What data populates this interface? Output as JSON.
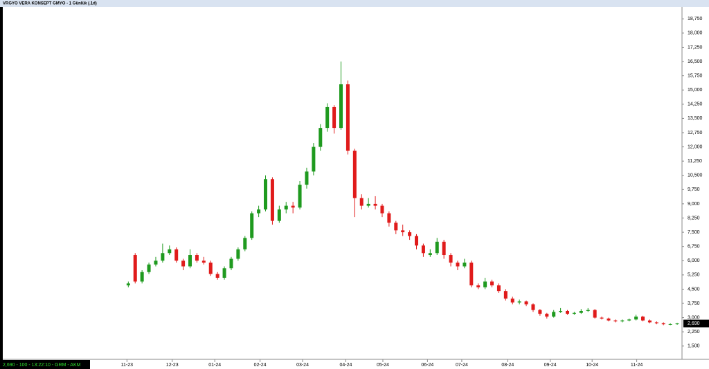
{
  "chart_data": {
    "type": "candlestick",
    "title": "VRGYO VERA KONSEPT GMYO - 1 Günlük (.1d)",
    "status": "2,690 - 100 - 13:22:10 - GRM - AKM",
    "last_price": {
      "value": 2690,
      "label": "2,690"
    },
    "up_color": "#1f9a1f",
    "down_color": "#e01b1b",
    "xlim": [
      -18.3,
      80.7
    ],
    "xticks": [
      {
        "value": -0.2,
        "label": "11-23"
      },
      {
        "value": 6.4,
        "label": "12-23"
      },
      {
        "value": 12.6,
        "label": "01-24"
      },
      {
        "value": 19.2,
        "label": "02-24"
      },
      {
        "value": 25.4,
        "label": "03-24"
      },
      {
        "value": 31.7,
        "label": "04-24"
      },
      {
        "value": 37.1,
        "label": "05-24"
      },
      {
        "value": 43.6,
        "label": "06-24"
      },
      {
        "value": 48.6,
        "label": "07-24"
      },
      {
        "value": 55.3,
        "label": "08-24"
      },
      {
        "value": 61.5,
        "label": "09-24"
      },
      {
        "value": 67.6,
        "label": "10-24"
      },
      {
        "value": 74.1,
        "label": "11-24"
      }
    ],
    "ylim": [
      800,
      19380
    ],
    "yticks": [
      {
        "value": 1500,
        "label": "1,500"
      },
      {
        "value": 2250,
        "label": "2,250"
      },
      {
        "value": 3000,
        "label": "3,000"
      },
      {
        "value": 3750,
        "label": "3,750"
      },
      {
        "value": 4500,
        "label": "4,500"
      },
      {
        "value": 5250,
        "label": "5,250"
      },
      {
        "value": 6000,
        "label": "6,000"
      },
      {
        "value": 6750,
        "label": "6,750"
      },
      {
        "value": 7500,
        "label": "7,500"
      },
      {
        "value": 8250,
        "label": "8,250"
      },
      {
        "value": 9000,
        "label": "9,000"
      },
      {
        "value": 9750,
        "label": "9,750"
      },
      {
        "value": 10500,
        "label": "10,500"
      },
      {
        "value": 11250,
        "label": "11,250"
      },
      {
        "value": 12000,
        "label": "12,000"
      },
      {
        "value": 12750,
        "label": "12,750"
      },
      {
        "value": 13500,
        "label": "13,500"
      },
      {
        "value": 14250,
        "label": "14,250"
      },
      {
        "value": 15000,
        "label": "15,000"
      },
      {
        "value": 15750,
        "label": "15,750"
      },
      {
        "value": 16500,
        "label": "16,500"
      },
      {
        "value": 17250,
        "label": "17,250"
      },
      {
        "value": 18000,
        "label": "18,000"
      },
      {
        "value": 18750,
        "label": "18,750"
      }
    ],
    "open": [
      4700,
      6300,
      4900,
      5400,
      5800,
      6000,
      6400,
      6600,
      6000,
      5700,
      6300,
      6000,
      5900,
      5300,
      5100,
      5600,
      6100,
      6600,
      7200,
      8500,
      8700,
      10300,
      8100,
      8700,
      8900,
      8800,
      10000,
      10700,
      12000,
      13000,
      14100,
      13000,
      15300,
      11800,
      9300,
      8900,
      9000,
      8900,
      8500,
      8000,
      7600,
      7500,
      7300,
      6800,
      6300,
      6400,
      7000,
      6300,
      5900,
      5700,
      5900,
      4700,
      4600,
      4900,
      4700,
      4400,
      4000,
      3800,
      3850,
      3700,
      3400,
      3200,
      3050,
      3300,
      3350,
      3200,
      3250,
      3350,
      3400,
      3000,
      2950,
      2850,
      2800,
      2850,
      2900,
      3050,
      2850,
      2750,
      2700,
      2650,
      2660
    ],
    "high": [
      4900,
      6400,
      5500,
      5900,
      6200,
      6900,
      6800,
      6700,
      6100,
      6600,
      6400,
      6200,
      6000,
      5400,
      5700,
      6200,
      6700,
      7300,
      8600,
      8900,
      10500,
      10400,
      8900,
      9100,
      9100,
      10200,
      10900,
      12200,
      13200,
      14300,
      14200,
      16500,
      15500,
      11900,
      9500,
      9300,
      9400,
      9000,
      8600,
      8100,
      7900,
      7600,
      7400,
      6900,
      6600,
      7200,
      7100,
      6400,
      6000,
      6100,
      6000,
      4800,
      5100,
      5000,
      4800,
      4500,
      4100,
      3950,
      3900,
      3750,
      3450,
      3250,
      3400,
      3500,
      3400,
      3300,
      3450,
      3500,
      3450,
      3050,
      3000,
      2900,
      2900,
      2950,
      3150,
      3100,
      2900,
      2800,
      2750,
      2700,
      2720
    ],
    "low": [
      4600,
      4800,
      4800,
      5300,
      5700,
      5900,
      6300,
      5900,
      5500,
      5600,
      5900,
      5800,
      5200,
      5000,
      5000,
      5500,
      6000,
      6500,
      7100,
      8300,
      8600,
      7900,
      8000,
      8500,
      8500,
      8700,
      9800,
      10500,
      11800,
      12800,
      12700,
      12900,
      11600,
      8300,
      8700,
      8800,
      8700,
      8300,
      7800,
      7400,
      7300,
      7100,
      6600,
      6200,
      6200,
      6300,
      6100,
      5700,
      5500,
      5600,
      4600,
      4500,
      4500,
      4600,
      4300,
      3900,
      3700,
      3700,
      3600,
      3300,
      3100,
      2950,
      3000,
      3250,
      3150,
      3150,
      3200,
      3300,
      2950,
      2900,
      2800,
      2750,
      2750,
      2800,
      2850,
      2800,
      2700,
      2650,
      2600,
      2600,
      2620
    ],
    "close": [
      4800,
      4900,
      5400,
      5800,
      6000,
      6400,
      6600,
      6000,
      5700,
      6300,
      6000,
      5900,
      5300,
      5100,
      5600,
      6100,
      6600,
      7200,
      8500,
      8700,
      10300,
      8100,
      8700,
      8900,
      8800,
      10000,
      10700,
      12000,
      13000,
      14100,
      13000,
      15300,
      11800,
      9300,
      8900,
      9000,
      8900,
      8500,
      8000,
      7600,
      7500,
      7300,
      6800,
      6400,
      6400,
      7000,
      6300,
      5900,
      5700,
      5900,
      4700,
      4600,
      4900,
      4700,
      4400,
      4000,
      3800,
      3850,
      3700,
      3400,
      3200,
      3050,
      3300,
      3350,
      3200,
      3250,
      3350,
      3400,
      3000,
      2950,
      2850,
      2800,
      2850,
      2900,
      3050,
      2850,
      2750,
      2700,
      2650,
      2660,
      2690
    ]
  }
}
